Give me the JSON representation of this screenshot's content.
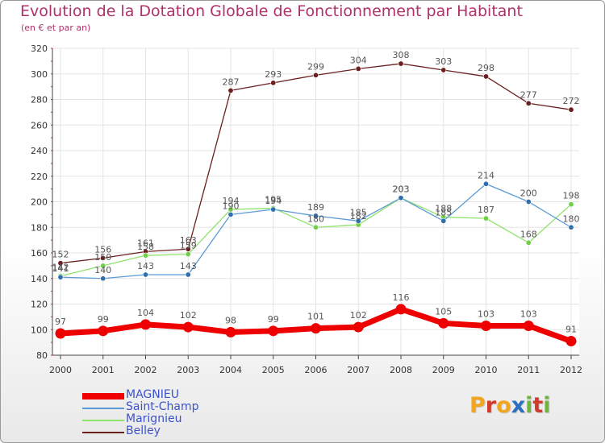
{
  "header": {
    "title": "Evolution de la Dotation Globale de Fonctionnement par Habitant",
    "subtitle": "(en € et par an)"
  },
  "logo": {
    "text": "Proxiti",
    "colors": [
      "#f2a51d",
      "#d03b2a",
      "#f2a51d",
      "#2b6fc1",
      "#6fb43b",
      "#d03b2a",
      "#6fb43b"
    ]
  },
  "chart_data": {
    "type": "line",
    "title": "Evolution de la Dotation Globale de Fonctionnement par Habitant",
    "subtitle": "(en € et par an)",
    "xlabel": "",
    "ylabel": "",
    "categories": [
      "2000",
      "2001",
      "2002",
      "2003",
      "2004",
      "2005",
      "2006",
      "2007",
      "2008",
      "2009",
      "2010",
      "2011",
      "2012"
    ],
    "ylim": [
      80,
      320
    ],
    "yticks": [
      80,
      100,
      120,
      140,
      160,
      180,
      200,
      220,
      240,
      260,
      280,
      300,
      320
    ],
    "grid": true,
    "legend_position": "bottom-left",
    "series": [
      {
        "name": "MAGNIEU",
        "color": "#ee0000",
        "values": [
          97,
          99,
          104,
          102,
          98,
          99,
          101,
          102,
          116,
          105,
          103,
          103,
          91
        ]
      },
      {
        "name": "Saint-Champ",
        "color": "#5b9bd5",
        "values": [
          141,
          140,
          143,
          143,
          190,
          194,
          189,
          185,
          203,
          185,
          214,
          200,
          180
        ]
      },
      {
        "name": "Marignieu",
        "color": "#8ee36b",
        "values": [
          142,
          150,
          158,
          159,
          194,
          195,
          180,
          182,
          203,
          188,
          187,
          168,
          198
        ]
      },
      {
        "name": "Belley",
        "color": "#6b1f1f",
        "values": [
          152,
          156,
          161,
          163,
          287,
          293,
          299,
          304,
          308,
          303,
          298,
          277,
          272
        ]
      }
    ]
  }
}
